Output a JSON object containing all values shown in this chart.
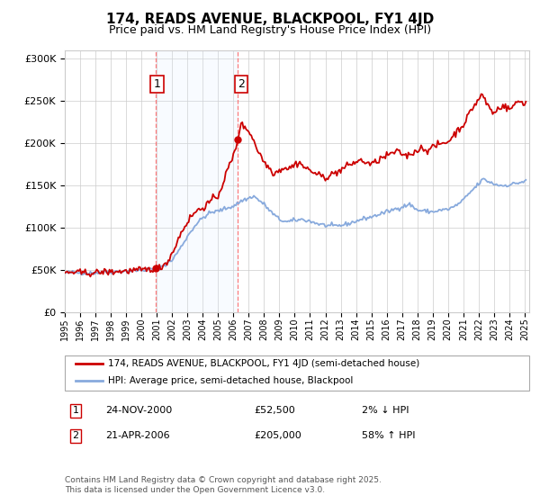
{
  "title": "174, READS AVENUE, BLACKPOOL, FY1 4JD",
  "subtitle": "Price paid vs. HM Land Registry's House Price Index (HPI)",
  "legend_line1": "174, READS AVENUE, BLACKPOOL, FY1 4JD (semi-detached house)",
  "legend_line2": "HPI: Average price, semi-detached house, Blackpool",
  "annotation1_label": "1",
  "annotation1_date": "24-NOV-2000",
  "annotation1_price": "£52,500",
  "annotation1_hpi": "2% ↓ HPI",
  "annotation2_label": "2",
  "annotation2_date": "21-APR-2006",
  "annotation2_price": "£205,000",
  "annotation2_hpi": "58% ↑ HPI",
  "footnote": "Contains HM Land Registry data © Crown copyright and database right 2025.\nThis data is licensed under the Open Government Licence v3.0.",
  "house_color": "#cc0000",
  "hpi_color": "#88aadd",
  "background_color": "#ffffff",
  "grid_color": "#cccccc",
  "shade_color": "#ddeeff",
  "ylim": [
    0,
    310000
  ],
  "yticks": [
    0,
    50000,
    100000,
    150000,
    200000,
    250000,
    300000
  ],
  "sale1_x": 2000.92,
  "sale1_y": 52500,
  "sale2_x": 2006.3,
  "sale2_y": 205000,
  "xmin": 1995,
  "xmax": 2025.3
}
